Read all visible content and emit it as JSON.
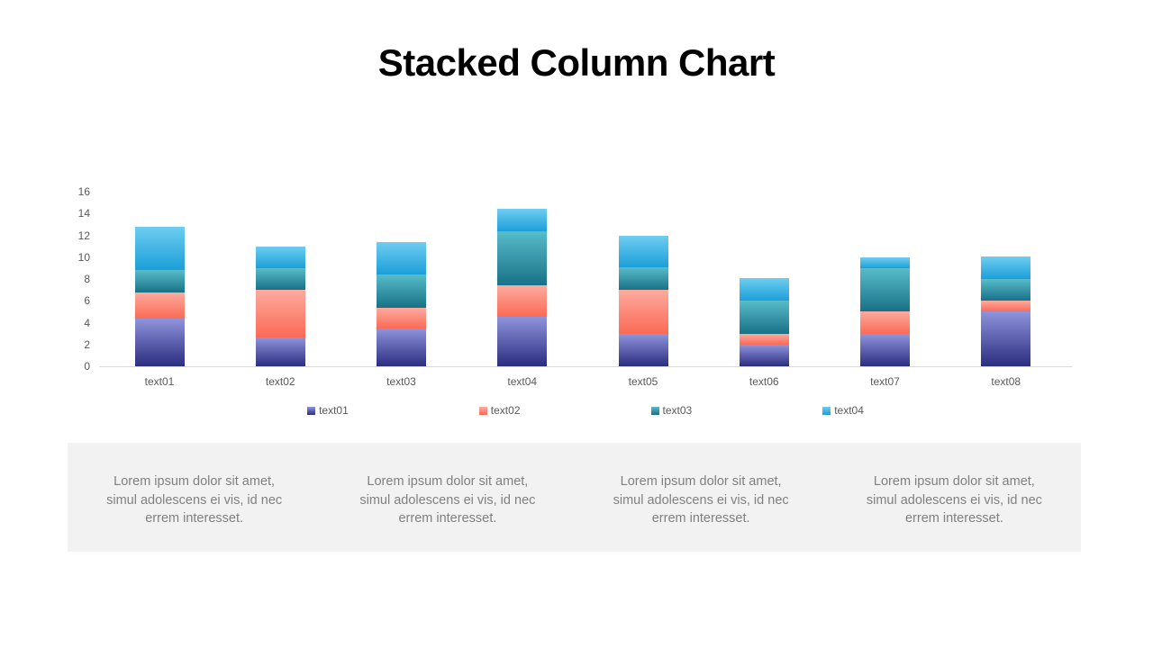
{
  "title": "Stacked Column Chart",
  "colors": {
    "background": "#ffffff",
    "axis_line": "#d9d9d9",
    "axis_text": "#595959",
    "footer_background": "#f2f2f2",
    "footer_text": "#808080",
    "title_text": "#000000"
  },
  "chart_data": {
    "type": "bar",
    "stacked": true,
    "title": "Stacked Column Chart",
    "xlabel": "",
    "ylabel": "",
    "categories": [
      "text01",
      "text02",
      "text03",
      "text04",
      "text05",
      "text06",
      "text07",
      "text08"
    ],
    "series": [
      {
        "name": "text01",
        "color_top": "#8f94dc",
        "color_bottom": "#2b2d7f",
        "values": [
          4.4,
          2.6,
          3.5,
          4.5,
          3.0,
          2.0,
          3.0,
          5.0
        ]
      },
      {
        "name": "text02",
        "color_top": "#fcab9f",
        "color_bottom": "#fb6a55",
        "values": [
          2.4,
          4.4,
          1.9,
          2.9,
          4.0,
          1.0,
          2.0,
          1.0
        ]
      },
      {
        "name": "text03",
        "color_top": "#58bcc9",
        "color_bottom": "#187187",
        "values": [
          2.0,
          2.0,
          3.0,
          5.0,
          2.1,
          3.0,
          4.0,
          2.0
        ]
      },
      {
        "name": "text04",
        "color_top": "#6fcdf0",
        "color_bottom": "#1b9fd9",
        "values": [
          4.0,
          2.0,
          3.0,
          2.0,
          2.9,
          2.1,
          1.0,
          2.1
        ]
      }
    ],
    "stack_totals": [
      12.8,
      11.0,
      11.4,
      14.4,
      12.0,
      8.1,
      10.0,
      10.1
    ],
    "ylim": [
      0,
      16
    ],
    "ytick_step": 2,
    "ytick_labels": [
      "0",
      "2",
      "4",
      "6",
      "8",
      "10",
      "12",
      "14",
      "16"
    ],
    "grid": false,
    "legend_position": "bottom"
  },
  "footer": {
    "blocks": [
      {
        "lines": [
          "Lorem ipsum dolor sit amet,",
          "simul adolescens ei vis, id nec",
          "errem interesset."
        ]
      },
      {
        "lines": [
          "Lorem ipsum dolor sit amet,",
          "simul adolescens ei vis, id nec",
          "errem interesset."
        ]
      },
      {
        "lines": [
          "Lorem ipsum dolor sit amet,",
          "simul adolescens ei vis, id nec",
          "errem interesset."
        ]
      },
      {
        "lines": [
          "Lorem ipsum dolor sit amet,",
          "simul adolescens ei vis, id nec",
          "errem interesset."
        ]
      }
    ]
  }
}
